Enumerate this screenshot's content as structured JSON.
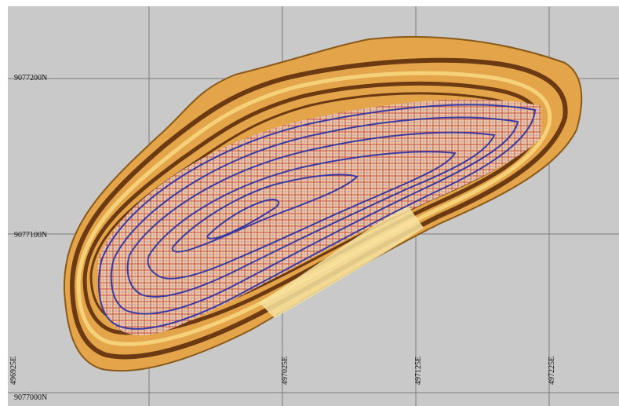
{
  "map_view": {
    "northings": [
      {
        "label": "9077200N"
      },
      {
        "label": "9077100N"
      },
      {
        "label": "9077000N"
      }
    ],
    "eastings": [
      {
        "label": "496925E"
      },
      {
        "label": "497025E"
      },
      {
        "label": "497125E"
      },
      {
        "label": "497225E"
      }
    ]
  },
  "colors": {
    "background": "#c9c9c9",
    "grid_line": "#7c7c7c",
    "pit_fill": "#e3a44a",
    "bench_dark": "#6b3a12",
    "bench_light": "#f5d27a",
    "block_grid": "#b0262a",
    "contour": "#3a3aa0"
  }
}
